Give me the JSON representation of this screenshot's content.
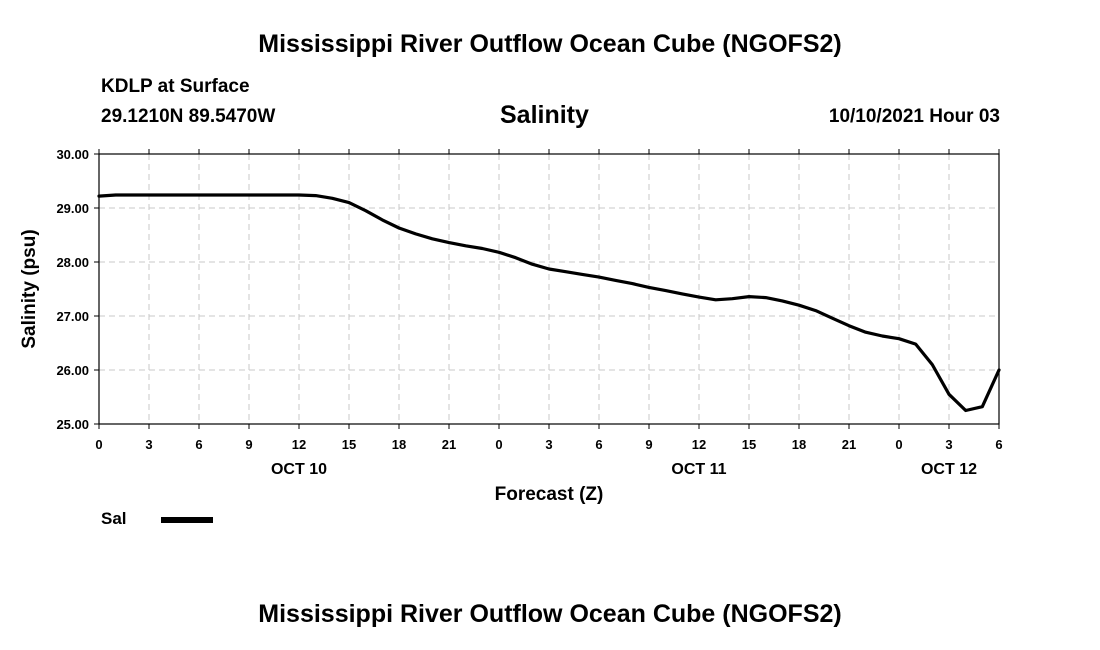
{
  "header": {
    "main_title": "Mississippi River Outflow Ocean Cube (NGOFS2)",
    "station": "KDLP at Surface",
    "coords": "29.1210N  89.5470W",
    "variable": "Salinity",
    "datetime": "10/10/2021 Hour 03"
  },
  "footer": {
    "title": "Mississippi River Outflow Ocean Cube (NGOFS2)"
  },
  "legend": {
    "label": "Sal",
    "color": "#000000"
  },
  "chart_data": {
    "type": "line",
    "title": "Salinity",
    "xlabel": "Forecast (Z)",
    "ylabel": "Salinity (psu)",
    "xlim": [
      0,
      54
    ],
    "ylim": [
      25.0,
      30.0
    ],
    "grid": true,
    "grid_style": "dashed",
    "legend_position": "bottom-left",
    "x_ticks": [
      0,
      3,
      6,
      9,
      12,
      15,
      18,
      21,
      24,
      27,
      30,
      33,
      36,
      39,
      42,
      45,
      48,
      51,
      54
    ],
    "x_tick_labels": [
      "0",
      "3",
      "6",
      "9",
      "12",
      "15",
      "18",
      "21",
      "0",
      "3",
      "6",
      "9",
      "12",
      "15",
      "18",
      "21",
      "0",
      "3",
      "6"
    ],
    "date_labels": [
      {
        "x": 12,
        "label": "OCT 10"
      },
      {
        "x": 36,
        "label": "OCT 11"
      },
      {
        "x": 51,
        "label": "OCT 12"
      }
    ],
    "y_ticks": [
      25.0,
      26.0,
      27.0,
      28.0,
      29.0,
      30.0
    ],
    "y_tick_labels": [
      "25.00",
      "26.00",
      "27.00",
      "28.00",
      "29.00",
      "30.00"
    ],
    "series": [
      {
        "name": "Sal",
        "color": "#000000",
        "x": [
          0,
          1,
          2,
          3,
          4,
          5,
          6,
          7,
          8,
          9,
          10,
          11,
          12,
          13,
          14,
          15,
          16,
          17,
          18,
          19,
          20,
          21,
          22,
          23,
          24,
          25,
          26,
          27,
          28,
          29,
          30,
          31,
          32,
          33,
          34,
          35,
          36,
          37,
          38,
          39,
          40,
          41,
          42,
          43,
          44,
          45,
          46,
          47,
          48,
          49,
          50,
          51,
          52,
          53,
          54
        ],
        "values": [
          29.22,
          29.24,
          29.24,
          29.24,
          29.24,
          29.24,
          29.24,
          29.24,
          29.24,
          29.24,
          29.24,
          29.24,
          29.24,
          29.23,
          29.18,
          29.1,
          28.95,
          28.78,
          28.63,
          28.52,
          28.43,
          28.36,
          28.3,
          28.25,
          28.18,
          28.08,
          27.96,
          27.87,
          27.82,
          27.77,
          27.72,
          27.66,
          27.6,
          27.53,
          27.47,
          27.41,
          27.35,
          27.3,
          27.32,
          27.36,
          27.34,
          27.28,
          27.2,
          27.1,
          26.96,
          26.82,
          26.7,
          26.63,
          26.58,
          26.48,
          26.1,
          25.55,
          25.25,
          25.32,
          26.0
        ]
      }
    ]
  }
}
